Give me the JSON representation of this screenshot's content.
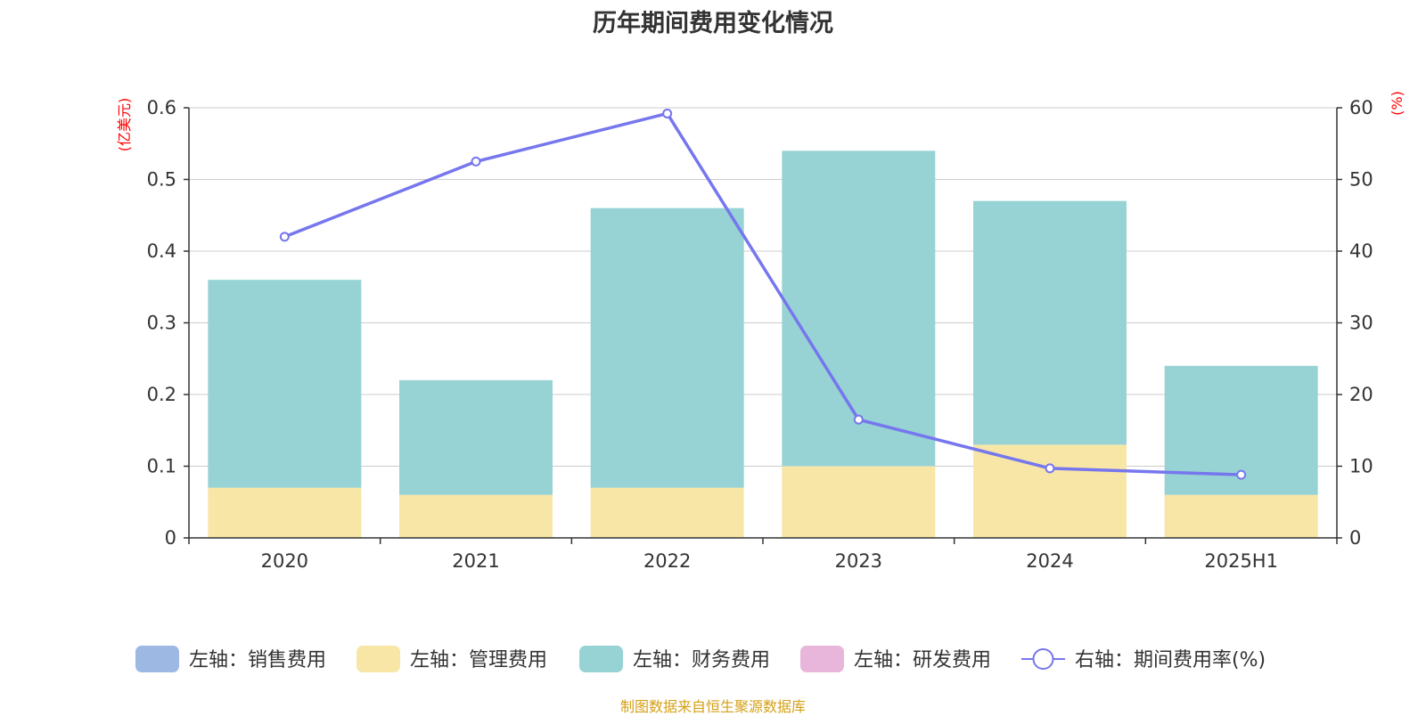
{
  "chart_data": {
    "type": "bar",
    "title": "历年期间费用变化情况",
    "categories": [
      "2020",
      "2021",
      "2022",
      "2023",
      "2024",
      "2025H1"
    ],
    "stacked": true,
    "left_axis": {
      "unit": "(亿美元)",
      "ylim": [
        0,
        0.6
      ],
      "ticks": [
        "0",
        "0.1",
        "0.2",
        "0.3",
        "0.4",
        "0.5",
        "0.6"
      ]
    },
    "right_axis": {
      "unit": "(%)",
      "ylim": [
        0,
        60
      ],
      "ticks": [
        "0",
        "10",
        "20",
        "30",
        "40",
        "50",
        "60"
      ]
    },
    "series": [
      {
        "name": "左轴：销售费用",
        "axis": "left",
        "type": "bar",
        "color": "#9db8e3",
        "values": [
          0,
          0,
          0,
          0,
          0,
          0
        ]
      },
      {
        "name": "左轴：管理费用",
        "axis": "left",
        "type": "bar",
        "color": "#f7e6a6",
        "values": [
          0.07,
          0.06,
          0.07,
          0.1,
          0.13,
          0.06
        ]
      },
      {
        "name": "左轴：财务费用",
        "axis": "left",
        "type": "bar",
        "color": "#97d3d4",
        "values": [
          0.29,
          0.16,
          0.39,
          0.44,
          0.34,
          0.18
        ]
      },
      {
        "name": "左轴：研发费用",
        "axis": "left",
        "type": "bar",
        "color": "#e8b6da",
        "values": [
          0,
          0,
          0,
          0,
          0,
          0
        ]
      },
      {
        "name": "右轴：期间费用率(%)",
        "axis": "right",
        "type": "line",
        "color": "#7676ee",
        "values": [
          42.0,
          52.5,
          59.2,
          16.5,
          9.7,
          8.8
        ]
      }
    ],
    "grid": true,
    "legend_position": "bottom"
  },
  "footer": {
    "source": "制图数据来自恒生聚源数据库",
    "source_color": "#d4a017"
  }
}
